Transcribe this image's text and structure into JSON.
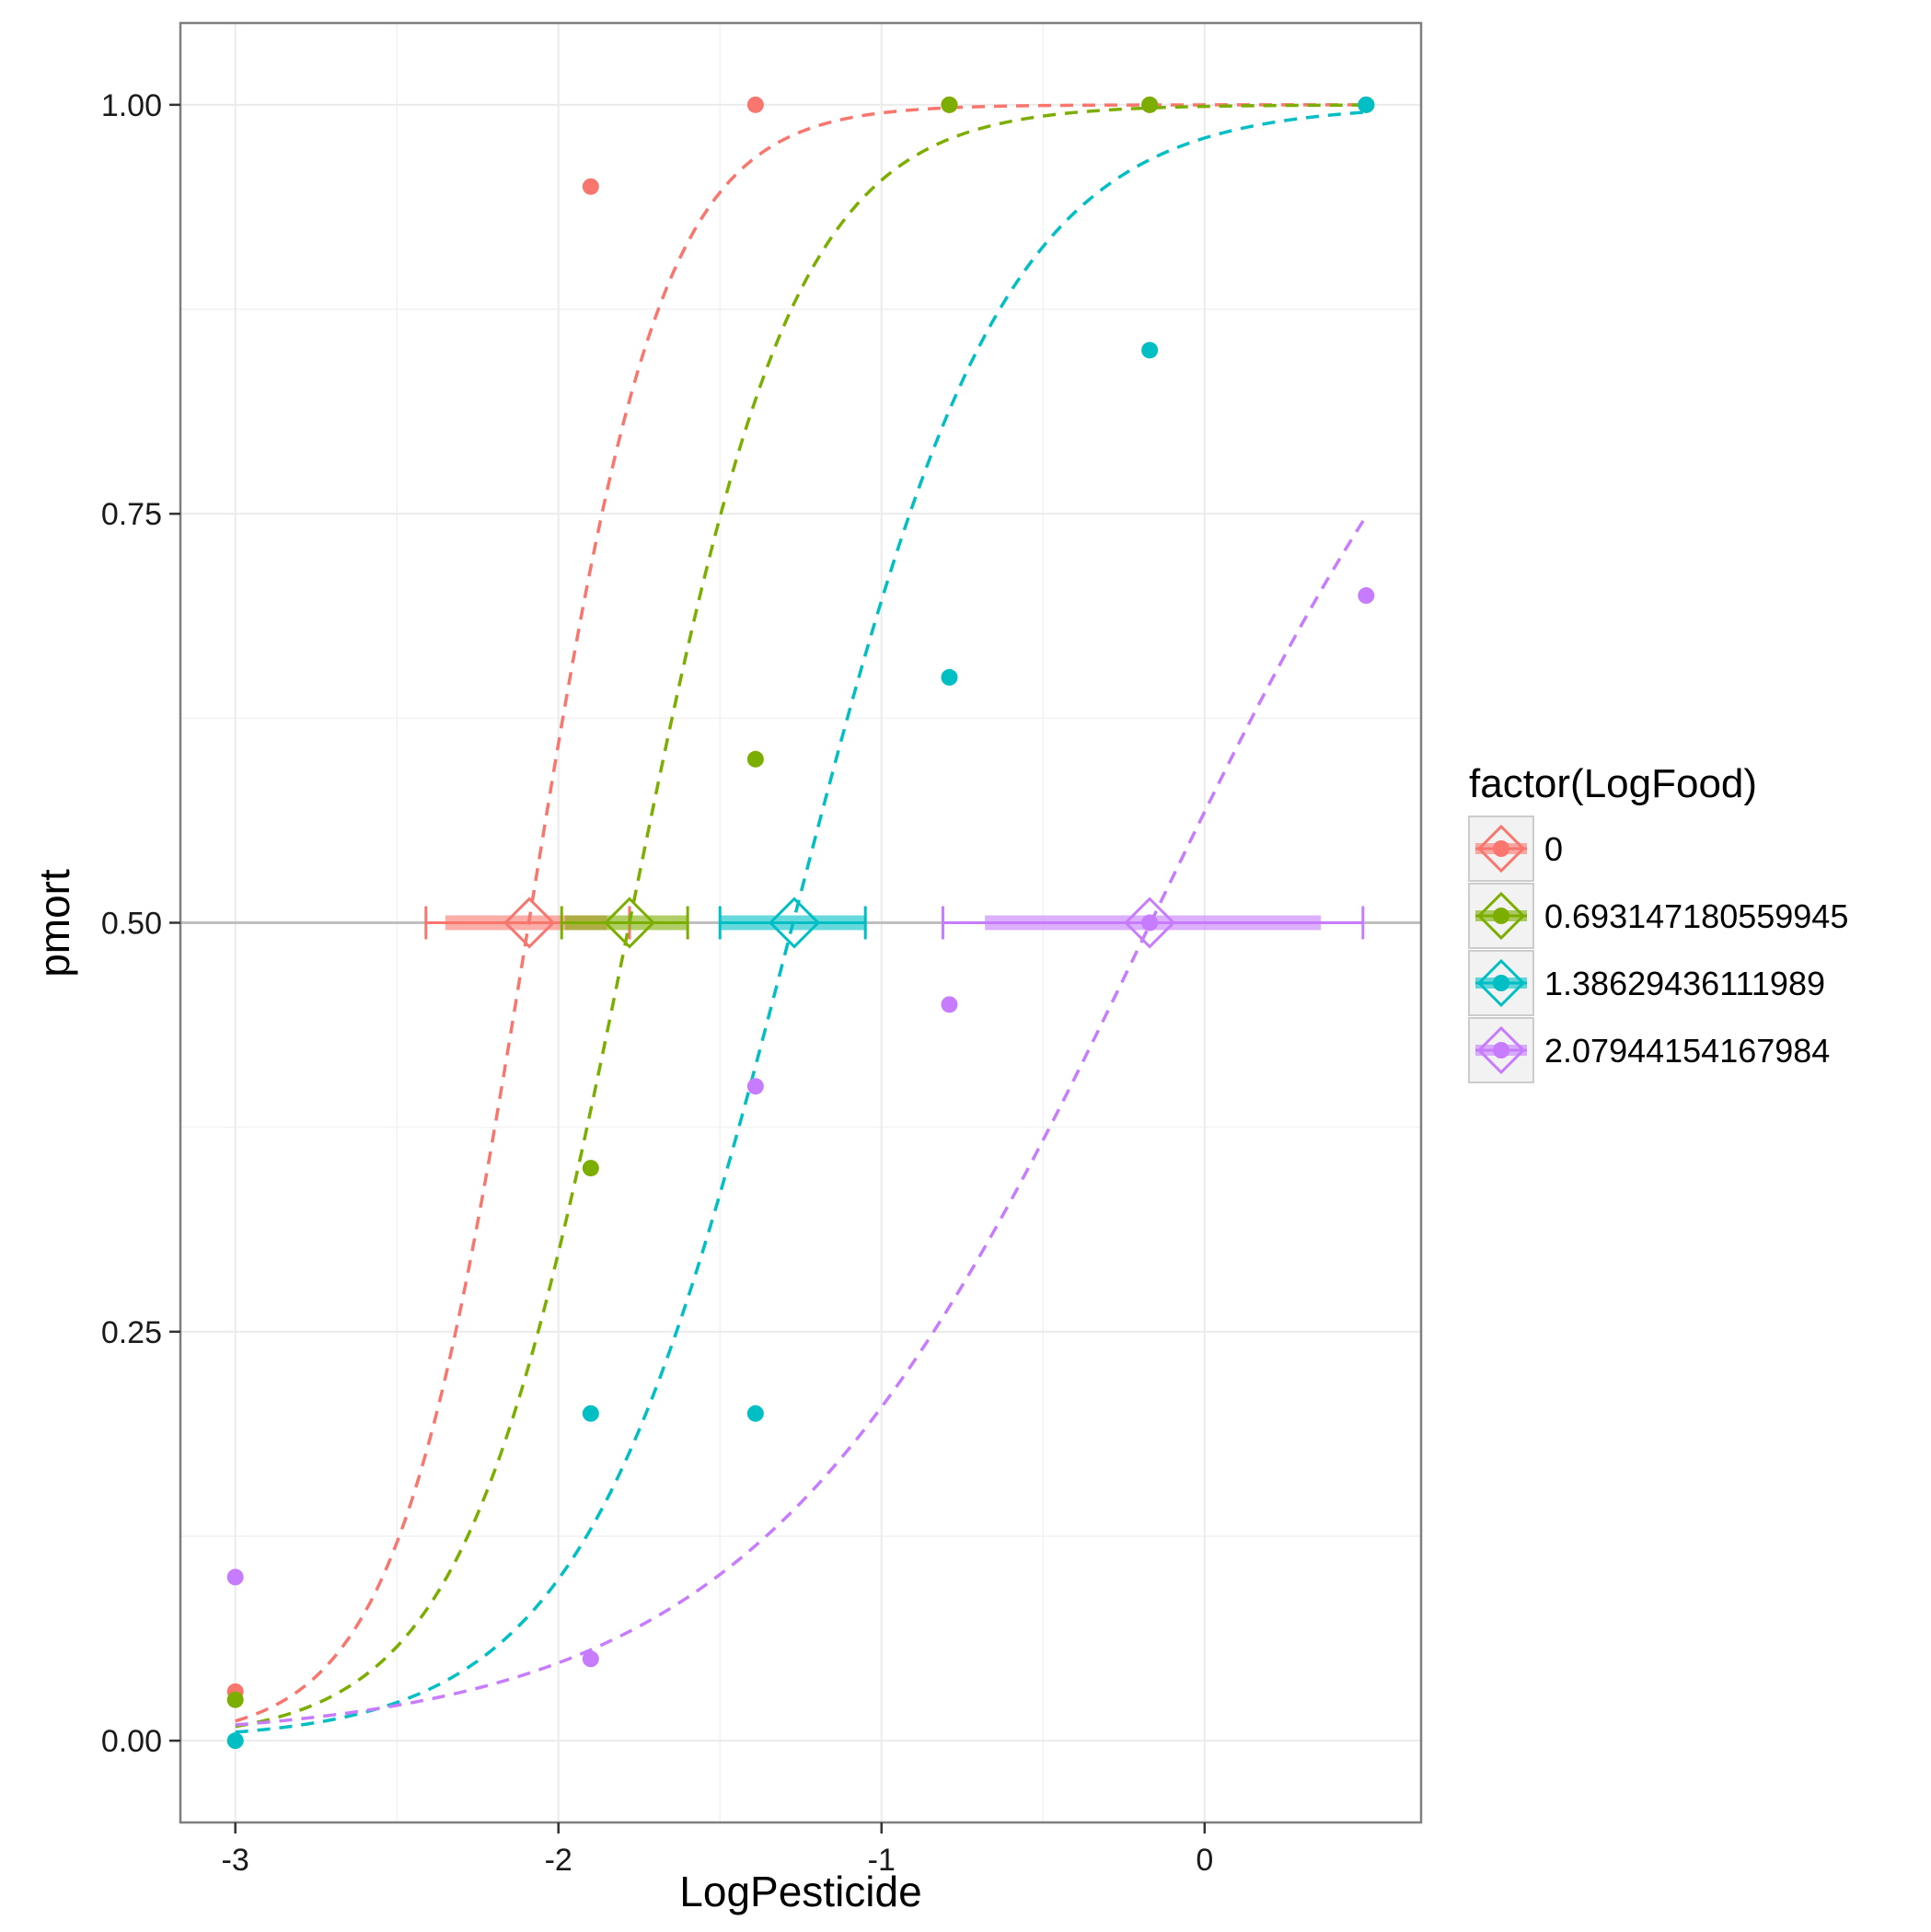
{
  "chart_data": {
    "type": "scatter",
    "xlabel": "LogPesticide",
    "ylabel": "pmort",
    "xlim": [
      -3.17,
      0.67
    ],
    "ylim": [
      -0.05,
      1.05
    ],
    "x_ticks": [
      -3,
      -2,
      -1,
      0
    ],
    "x_tick_labels": [
      "-3",
      "-2",
      "-1",
      "0"
    ],
    "y_ticks": [
      0,
      0.25,
      0.5,
      0.75,
      1
    ],
    "y_tick_labels": [
      "0.00",
      "0.25",
      "0.50",
      "0.75",
      "1.00"
    ],
    "grid": true,
    "reference_line_y": 0.5,
    "legend": {
      "title": "factor(LogFood)",
      "position": "right",
      "entries": [
        "0",
        "0.693147180559945",
        "1.38629436111989",
        "2.07944154167984"
      ]
    },
    "colors": [
      "#f8766d",
      "#7cae00",
      "#00bfc4",
      "#c77cff"
    ],
    "series": [
      {
        "name": "0",
        "points": {
          "x": [
            -3,
            -1.9,
            -1.39,
            -0.79,
            -0.17,
            0.5
          ],
          "y": [
            0.03,
            0.95,
            1.0,
            1.0,
            1.0,
            1.0
          ]
        },
        "curve": {
          "intercept": 10.155,
          "slope": 4.855
        },
        "ld50": {
          "x": -2.09,
          "ci_inner": [
            -2.35,
            -1.85
          ],
          "ci_outer": [
            -2.41,
            -1.78
          ]
        }
      },
      {
        "name": "0.693147180559945",
        "points": {
          "x": [
            -3,
            -1.9,
            -1.39,
            -0.79,
            -0.17,
            0.5
          ],
          "y": [
            0.025,
            0.35,
            0.6,
            1.0,
            1.0,
            1.0
          ]
        },
        "curve": {
          "intercept": 6.917,
          "slope": 3.886
        },
        "ld50": {
          "x": -1.78,
          "ci_inner": [
            -1.98,
            -1.6
          ],
          "ci_outer": [
            -1.99,
            -1.6
          ]
        }
      },
      {
        "name": "1.38629436111989",
        "points": {
          "x": [
            -3,
            -1.9,
            -1.39,
            -0.79,
            -0.17,
            0.5
          ],
          "y": [
            0.0,
            0.2,
            0.2,
            0.65,
            0.85,
            1.0
          ]
        },
        "curve": {
          "intercept": 3.877,
          "slope": 3.044
        },
        "ld50": {
          "x": -1.27,
          "ci_inner": [
            -1.5,
            -1.05
          ],
          "ci_outer": [
            -1.5,
            -1.05
          ]
        }
      },
      {
        "name": "2.07944154167984",
        "points": {
          "x": [
            -3,
            -1.9,
            -1.39,
            -0.79,
            -0.17,
            0.5
          ],
          "y": [
            0.1,
            0.05,
            0.4,
            0.45,
            0.5,
            0.7
          ]
        },
        "curve": {
          "intercept": 0.273,
          "slope": 1.635
        },
        "ld50": {
          "x": -0.17,
          "ci_inner": [
            -0.68,
            0.36
          ],
          "ci_outer": [
            -0.81,
            0.49
          ]
        }
      }
    ]
  }
}
